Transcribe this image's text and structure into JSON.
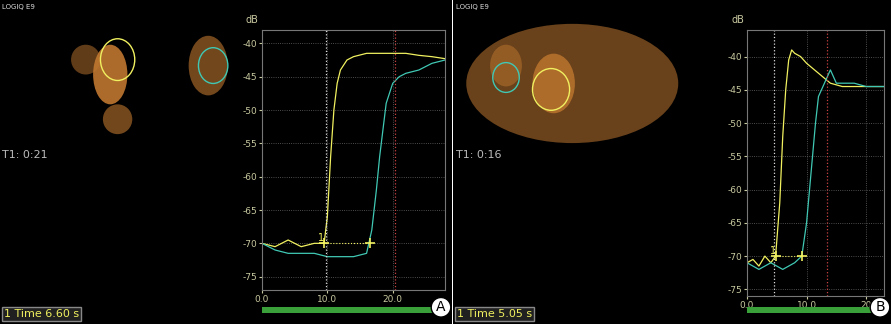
{
  "chart_data": [
    {
      "type": "line",
      "y_label": "dB",
      "annotations": {
        "device": "LOGIQ E9",
        "clock": "T1: 0:21",
        "readout": "1 Time 6.60 s",
        "panel": "A"
      },
      "xlim": [
        0,
        28
      ],
      "ylim": [
        -77,
        -38
      ],
      "xticks": [
        {
          "value": 0,
          "label": "0.0"
        },
        {
          "value": 10,
          "label": "10.0"
        },
        {
          "value": 20,
          "label": "20.0"
        }
      ],
      "yticks": [
        -40,
        -45,
        -50,
        -55,
        -60,
        -65,
        -70,
        -75
      ],
      "grid": true,
      "series": [
        {
          "color": "#f0f060",
          "x": [
            0,
            2,
            4,
            6,
            8,
            9.5,
            10,
            10.5,
            11,
            11.5,
            12,
            13,
            14,
            16,
            18,
            20,
            22,
            24,
            26,
            28
          ],
          "values": [
            -70,
            -70.5,
            -69.5,
            -70.5,
            -70,
            -70,
            -66,
            -57,
            -50,
            -46,
            -44,
            -42.5,
            -42,
            -41.5,
            -41.5,
            -41.5,
            -41.5,
            -41.8,
            -42,
            -42.3
          ]
        },
        {
          "color": "#40c8b4",
          "x": [
            0,
            2,
            4,
            6,
            8,
            10,
            12,
            14,
            16,
            16.8,
            17.5,
            18,
            18.5,
            19,
            20,
            21,
            22,
            24,
            26,
            28
          ],
          "values": [
            -70,
            -71,
            -71.5,
            -71.5,
            -71.5,
            -72,
            -72,
            -72,
            -71.5,
            -68,
            -62,
            -57,
            -53,
            -49,
            -46,
            -45,
            -44.5,
            -44,
            -43,
            -42.5
          ]
        }
      ],
      "cursors": [
        {
          "x": 9.8,
          "color": "#dddddd"
        },
        {
          "x": 20.3,
          "color": "#cc4444"
        }
      ],
      "points": [
        {
          "x": 9.5,
          "y": -70,
          "label": "1"
        },
        {
          "x": 16.5,
          "y": -70
        }
      ]
    },
    {
      "type": "line",
      "y_label": "dB",
      "annotations": {
        "device": "LOGIQ E9",
        "clock": "T1: 0:16",
        "readout": "1 Time 5.05 s",
        "panel": "B"
      },
      "xlim": [
        0,
        23
      ],
      "ylim": [
        -76,
        -36
      ],
      "xticks": [
        {
          "value": 0,
          "label": "0.0"
        },
        {
          "value": 10,
          "label": "10.0"
        },
        {
          "value": 20,
          "label": "20"
        }
      ],
      "yticks": [
        -40,
        -45,
        -50,
        -55,
        -60,
        -65,
        -70,
        -75
      ],
      "grid": true,
      "series": [
        {
          "color": "#f0f060",
          "x": [
            0,
            1,
            2,
            3,
            4,
            4.8,
            5.5,
            6,
            6.5,
            7,
            7.5,
            8,
            9,
            10,
            12,
            14,
            16,
            18,
            20,
            22,
            23
          ],
          "values": [
            -71,
            -70.5,
            -71.5,
            -70,
            -71,
            -70,
            -62,
            -52,
            -45,
            -40.5,
            -39,
            -39.5,
            -40,
            -41,
            -42.5,
            -44,
            -44.5,
            -44.5,
            -44.5,
            -44.5,
            -44.5
          ]
        },
        {
          "color": "#40c8b4",
          "x": [
            0,
            2,
            4,
            6,
            8,
            9.2,
            10,
            10.5,
            11,
            11.5,
            12,
            13,
            14,
            15,
            16,
            18,
            20,
            23
          ],
          "values": [
            -71,
            -72,
            -71,
            -72,
            -71,
            -70,
            -65,
            -60,
            -55,
            -50,
            -46,
            -44,
            -42,
            -44,
            -44,
            -44,
            -44.5,
            -44.5
          ]
        }
      ],
      "cursors": [
        {
          "x": 4.5,
          "color": "#dddddd"
        },
        {
          "x": 13.5,
          "color": "#cc4444"
        }
      ],
      "points": [
        {
          "x": 4.8,
          "y": -70,
          "label": "1"
        },
        {
          "x": 9.2,
          "y": -70
        }
      ]
    }
  ]
}
